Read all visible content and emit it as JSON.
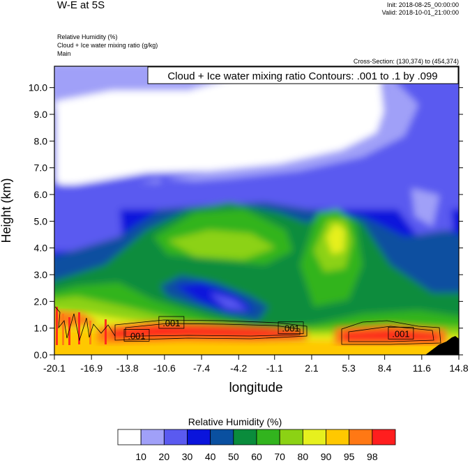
{
  "header": {
    "title": "W-E at 5S",
    "init": "Init: 2018-08-25_00:00:00",
    "valid": "Valid: 2018-10-01_21:00:00",
    "subtitle_lines": [
      "Relative Humidity   (%)",
      "Cloud + Ice water mixing ratio   (g/kg)",
      "Main"
    ],
    "cross_section": "Cross-Section: (130,374) to (454,374)"
  },
  "chart_data": {
    "type": "heatmap",
    "title": "W-E at 5S",
    "xlabel": "longitude",
    "ylabel": "Height (km)",
    "x_ticks": [
      "-20.1",
      "-16.9",
      "-13.8",
      "-10.6",
      "-7.4",
      "-4.2",
      "-1.1",
      "2.1",
      "5.3",
      "8.4",
      "11.6",
      "14.8"
    ],
    "y_ticks": [
      "0.0",
      "1.0",
      "2.0",
      "3.0",
      "4.0",
      "5.0",
      "6.0",
      "7.0",
      "8.0",
      "9.0",
      "10.0"
    ],
    "xlim": [
      -20.1,
      14.8
    ],
    "ylim": [
      0.0,
      10.8
    ],
    "contour_annotation": "Cloud + Ice water mixing ratio Contours: .001 to .1 by .099",
    "contour_labels": [
      {
        "text": ".001",
        "lon": -10.0,
        "height": 1.2
      },
      {
        "text": ".001",
        "lon": -13.0,
        "height": 0.72
      },
      {
        "text": ".001",
        "lon": 0.3,
        "height": 1.0
      },
      {
        "text": ".001",
        "lon": 9.8,
        "height": 0.8
      }
    ],
    "colorbar": {
      "title": "Relative Humidity  (%)",
      "levels": [
        "10",
        "20",
        "30",
        "40",
        "50",
        "60",
        "70",
        "80",
        "90",
        "95",
        "98"
      ],
      "colors": [
        "#ffffff",
        "#a0a0f8",
        "#5a5af0",
        "#0a14dc",
        "#0a50a0",
        "#0a8c3c",
        "#32b41e",
        "#8cd214",
        "#e6f01e",
        "#ffc800",
        "#ff7814",
        "#ff1e1e"
      ]
    }
  }
}
